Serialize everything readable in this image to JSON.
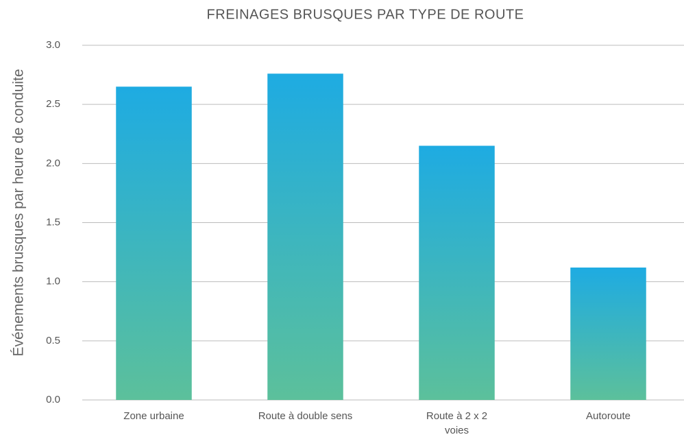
{
  "chart_data": {
    "type": "bar",
    "title": "FREINAGES BRUSQUES PAR TYPE DE ROUTE",
    "y_label": "Événements brusques par heure de conduite",
    "categories": [
      "Zone urbaine",
      "Route à double sens",
      "Route à 2 x 2\nvoies",
      "Autoroute"
    ],
    "values": [
      2.65,
      2.76,
      2.15,
      1.12
    ],
    "gradient": [
      "#1eabe2",
      "#5cc09b"
    ],
    "ylim": [
      0,
      3
    ],
    "yticks": [
      {
        "value": 0,
        "label": "0.0"
      },
      {
        "value": 0.5,
        "label": "0.5"
      },
      {
        "value": 1,
        "label": "1.0"
      },
      {
        "value": 1.5,
        "label": "1.5"
      },
      {
        "value": 2,
        "label": "2.0"
      },
      {
        "value": 2.5,
        "label": "2.5"
      },
      {
        "value": 3,
        "label": "3.0"
      }
    ],
    "grid": true
  }
}
